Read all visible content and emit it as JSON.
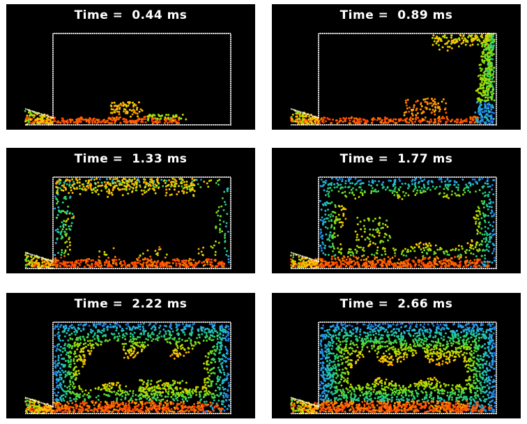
{
  "figure": {
    "panels": [
      {
        "title": "Time =  0.44 ms",
        "stage": 1
      },
      {
        "title": "Time =  0.89 ms",
        "stage": 2
      },
      {
        "title": "Time =  1.33 ms",
        "stage": 3
      },
      {
        "title": "Time =  1.77 ms",
        "stage": 4
      },
      {
        "title": "Time =  2.22 ms",
        "stage": 5
      },
      {
        "title": "Time =  2.66 ms",
        "stage": 6
      }
    ],
    "colors": {
      "background": "#000000",
      "frame": "#ffffff",
      "colormap": [
        "#ff2a00",
        "#ff8800",
        "#ffd000",
        "#9be000",
        "#22d26e",
        "#27b6e6",
        "#1a4fe0"
      ]
    }
  }
}
